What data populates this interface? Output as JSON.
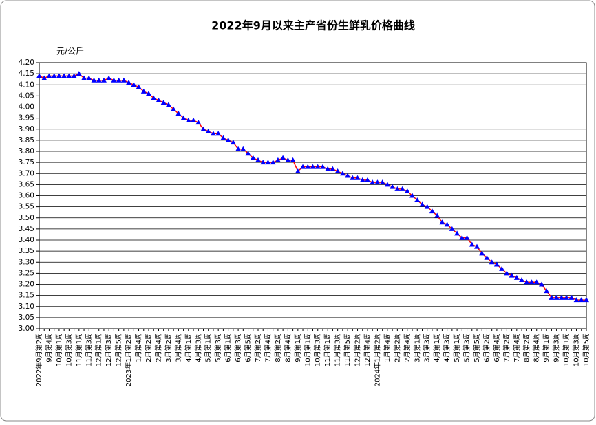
{
  "chart_data": {
    "type": "line",
    "title": "2022年9月以来主产省份生鲜乳价格曲线",
    "y_label": "元/公斤",
    "categories": [
      "2022年9月第2周",
      null,
      "9月第4周",
      null,
      "10月第1周",
      null,
      "10月第3周",
      null,
      "11月第1周",
      null,
      "11月第3周",
      null,
      "12月第1周",
      null,
      "12月第3周",
      null,
      "12月第5周",
      null,
      "2023年1月第2周",
      null,
      "1月第4周",
      null,
      "2月第2周",
      null,
      "2月第4周",
      null,
      "3月第2周",
      null,
      "3月第4周",
      null,
      "4月第1周",
      null,
      "4月第3周",
      null,
      "5月第1周",
      null,
      "5月第3周",
      null,
      "6月第1周",
      null,
      "6月第3周",
      null,
      "6月第5周",
      null,
      "7月第2周",
      null,
      "7月第4周",
      null,
      "8月第2周",
      null,
      "8月第4周",
      null,
      "9月第1周",
      null,
      "10月第1周",
      null,
      "10月第3周",
      null,
      "11月第1周",
      null,
      "11月第3周",
      null,
      "11月第5周",
      null,
      "12月第2周",
      null,
      "12月第4周",
      null,
      "2024年1月第2周",
      null,
      "1月第4周",
      null,
      "2月第2周",
      null,
      "2月第4周",
      null,
      "3月第1周",
      null,
      "3月第3周",
      null,
      "4月第1周",
      null,
      "4月第3周",
      null,
      "5月第1周",
      null,
      "5月第3周",
      null,
      "5月第5周",
      null,
      "6月第2周",
      null,
      "6月第4周",
      null,
      "7月第2周",
      null,
      "7月第4周",
      null,
      "8月第2周",
      null,
      "8月第4周",
      null,
      "9月第1周",
      null,
      "9月第3周",
      null,
      "10月第1周",
      null,
      "10月第3周",
      null,
      "10月第5周"
    ],
    "series": [
      {
        "color": "#ff0000",
        "marker_color": "#0000ff",
        "values": [
          4.14,
          4.13,
          4.14,
          4.14,
          4.14,
          4.14,
          4.14,
          4.14,
          4.15,
          4.13,
          4.13,
          4.12,
          4.12,
          4.12,
          4.13,
          4.12,
          4.12,
          4.12,
          4.11,
          4.1,
          4.09,
          4.07,
          4.06,
          4.04,
          4.03,
          4.02,
          4.01,
          3.99,
          3.97,
          3.95,
          3.94,
          3.94,
          3.93,
          3.9,
          3.89,
          3.88,
          3.88,
          3.86,
          3.85,
          3.84,
          3.81,
          3.81,
          3.79,
          3.77,
          3.76,
          3.75,
          3.75,
          3.75,
          3.76,
          3.77,
          3.76,
          3.76,
          3.71,
          3.73,
          3.73,
          3.73,
          3.73,
          3.73,
          3.72,
          3.72,
          3.71,
          3.7,
          3.69,
          3.68,
          3.68,
          3.67,
          3.67,
          3.66,
          3.66,
          3.66,
          3.65,
          3.64,
          3.63,
          3.63,
          3.62,
          3.6,
          3.58,
          3.56,
          3.55,
          3.53,
          3.51,
          3.48,
          3.47,
          3.45,
          3.43,
          3.41,
          3.41,
          3.38,
          3.37,
          3.34,
          3.32,
          3.3,
          3.29,
          3.27,
          3.25,
          3.24,
          3.23,
          3.22,
          3.21,
          3.21,
          3.21,
          3.2,
          3.17,
          3.14,
          3.14,
          3.14,
          3.14,
          3.14,
          3.13,
          3.13,
          3.13
        ]
      }
    ],
    "ylim": [
      3.0,
      4.2
    ],
    "yticks": [
      {
        "value": 3.0,
        "label": "3.00"
      },
      {
        "value": 3.05,
        "label": "3.05"
      },
      {
        "value": 3.1,
        "label": "3.10"
      },
      {
        "value": 3.15,
        "label": "3.15"
      },
      {
        "value": 3.2,
        "label": "3.20"
      },
      {
        "value": 3.25,
        "label": "3.25"
      },
      {
        "value": 3.3,
        "label": "3.30"
      },
      {
        "value": 3.35,
        "label": "3.35"
      },
      {
        "value": 3.4,
        "label": "3.40"
      },
      {
        "value": 3.45,
        "label": "3.45"
      },
      {
        "value": 3.5,
        "label": "3.50"
      },
      {
        "value": 3.55,
        "label": "3.55"
      },
      {
        "value": 3.6,
        "label": "3.60"
      },
      {
        "value": 3.65,
        "label": "3.65"
      },
      {
        "value": 3.7,
        "label": "3.70"
      },
      {
        "value": 3.75,
        "label": "3.75"
      },
      {
        "value": 3.8,
        "label": "3.80"
      },
      {
        "value": 3.85,
        "label": "3.85"
      },
      {
        "value": 3.9,
        "label": "3.90"
      },
      {
        "value": 3.95,
        "label": "3.95"
      },
      {
        "value": 4.0,
        "label": "4.00"
      },
      {
        "value": 4.05,
        "label": "4.05"
      },
      {
        "value": 4.1,
        "label": "4.10"
      },
      {
        "value": 4.15,
        "label": "4.15"
      },
      {
        "value": 4.2,
        "label": "4.20"
      }
    ],
    "grid": true
  }
}
